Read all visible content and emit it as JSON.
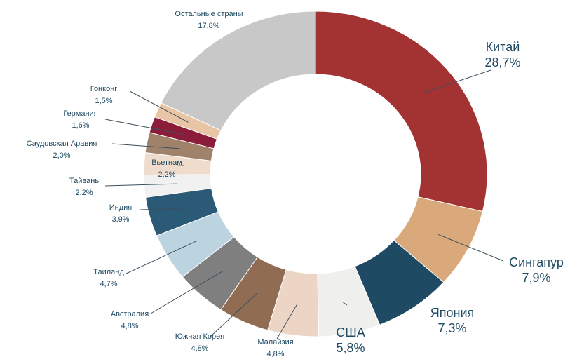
{
  "chart_data": {
    "type": "donut",
    "categories": [
      "Китай",
      "Сингапур",
      "Япония",
      "США",
      "Малайзия",
      "Южная Корея",
      "Австралия",
      "Таиланд",
      "Индия",
      "Тайвань",
      "Вьетнам",
      "Саудовская Аравия",
      "Германия",
      "Гонконг",
      "Остальные страны"
    ],
    "values": [
      28.7,
      7.9,
      7.3,
      5.8,
      4.8,
      4.8,
      4.8,
      4.7,
      3.9,
      2.2,
      2.2,
      2.0,
      1.6,
      1.5,
      17.8
    ],
    "value_labels": [
      "28,7%",
      "7,9%",
      "7,3%",
      "5,8%",
      "4,8%",
      "4,8%",
      "4,8%",
      "4,7%",
      "3,9%",
      "2,2%",
      "2,2%",
      "2,0%",
      "1,6%",
      "1,5%",
      "17,8%"
    ],
    "colors": [
      "#a33233",
      "#d9a97c",
      "#1f4a63",
      "#efefed",
      "#ecd5c5",
      "#8f6c52",
      "#7f7f7f",
      "#bcd3e0",
      "#2a5a75",
      "#f1f1f1",
      "#f0dccd",
      "#a0826b",
      "#8c1d3a",
      "#e8c6a5",
      "#c8c8c8"
    ]
  }
}
